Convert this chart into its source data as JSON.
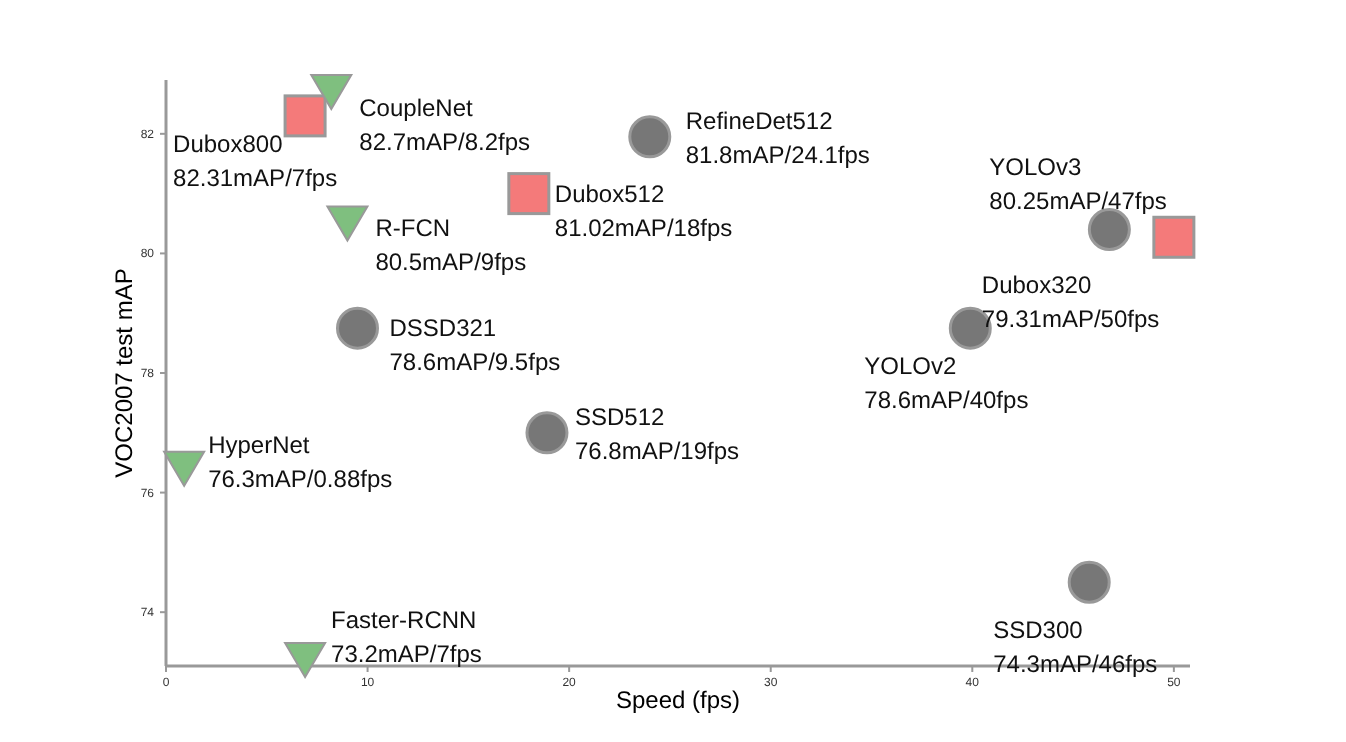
{
  "chart_data": {
    "type": "scatter",
    "xlabel": "Speed (fps)",
    "ylabel": "VOC2007 test mAP",
    "xlim": [
      0,
      50.8
    ],
    "ylim": [
      73.1,
      82.9
    ],
    "xticks": [
      0,
      10,
      20,
      30,
      40,
      50
    ],
    "yticks": [
      74,
      76,
      78,
      80,
      82
    ],
    "grid": false,
    "series": [
      {
        "color": "#777777",
        "marker": "circle",
        "x": [
          24.0,
          9.5,
          18.9,
          46.8,
          39.9,
          45.8
        ],
        "values": [
          81.95,
          78.75,
          77.0,
          80.4,
          78.75,
          74.5
        ]
      },
      {
        "color": "#f47a7a",
        "marker": "square",
        "x": [
          6.9,
          18.0,
          50.0
        ],
        "values": [
          82.3,
          81.0,
          80.27
        ]
      },
      {
        "color": "#7fbf7f",
        "marker": "triangle",
        "x": [
          8.2,
          9.0,
          0.9,
          6.9
        ],
        "values": [
          82.7,
          80.5,
          76.4,
          73.2
        ]
      }
    ],
    "annotations": [
      {
        "text": "Dubox800\n82.31mAP/7fps",
        "x": 6.9,
        "y": 82.3
      },
      {
        "text": "CoupleNet\n82.7mAP/8.2fps",
        "x": 8.2,
        "y": 82.7
      },
      {
        "text": "RefineDet512\n81.8mAP/24.1fps",
        "x": 24.0,
        "y": 81.95
      },
      {
        "text": "Dubox512\n81.02mAP/18fps",
        "x": 18.0,
        "y": 81.0
      },
      {
        "text": "R-FCN\n80.5mAP/9fps",
        "x": 9.0,
        "y": 80.5
      },
      {
        "text": "DSSD321\n78.6mAP/9.5fps",
        "x": 9.5,
        "y": 78.75
      },
      {
        "text": "SSD512\n76.8mAP/19fps",
        "x": 18.9,
        "y": 77.0
      },
      {
        "text": "HyperNet\n76.3mAP/0.88fps",
        "x": 0.9,
        "y": 76.4
      },
      {
        "text": "Faster-RCNN\n73.2mAP/7fps",
        "x": 6.9,
        "y": 73.2
      },
      {
        "text": "YOLOv3\n80.25mAP/47fps",
        "x": 46.8,
        "y": 80.4
      },
      {
        "text": "Dubox320\n79.31mAP/50fps",
        "x": 50.0,
        "y": 80.27
      },
      {
        "text": "YOLOv2\n78.6mAP/40fps",
        "x": 39.9,
        "y": 78.75
      },
      {
        "text": "SSD300\n74.3mAP/46fps",
        "x": 45.8,
        "y": 74.5
      }
    ]
  }
}
